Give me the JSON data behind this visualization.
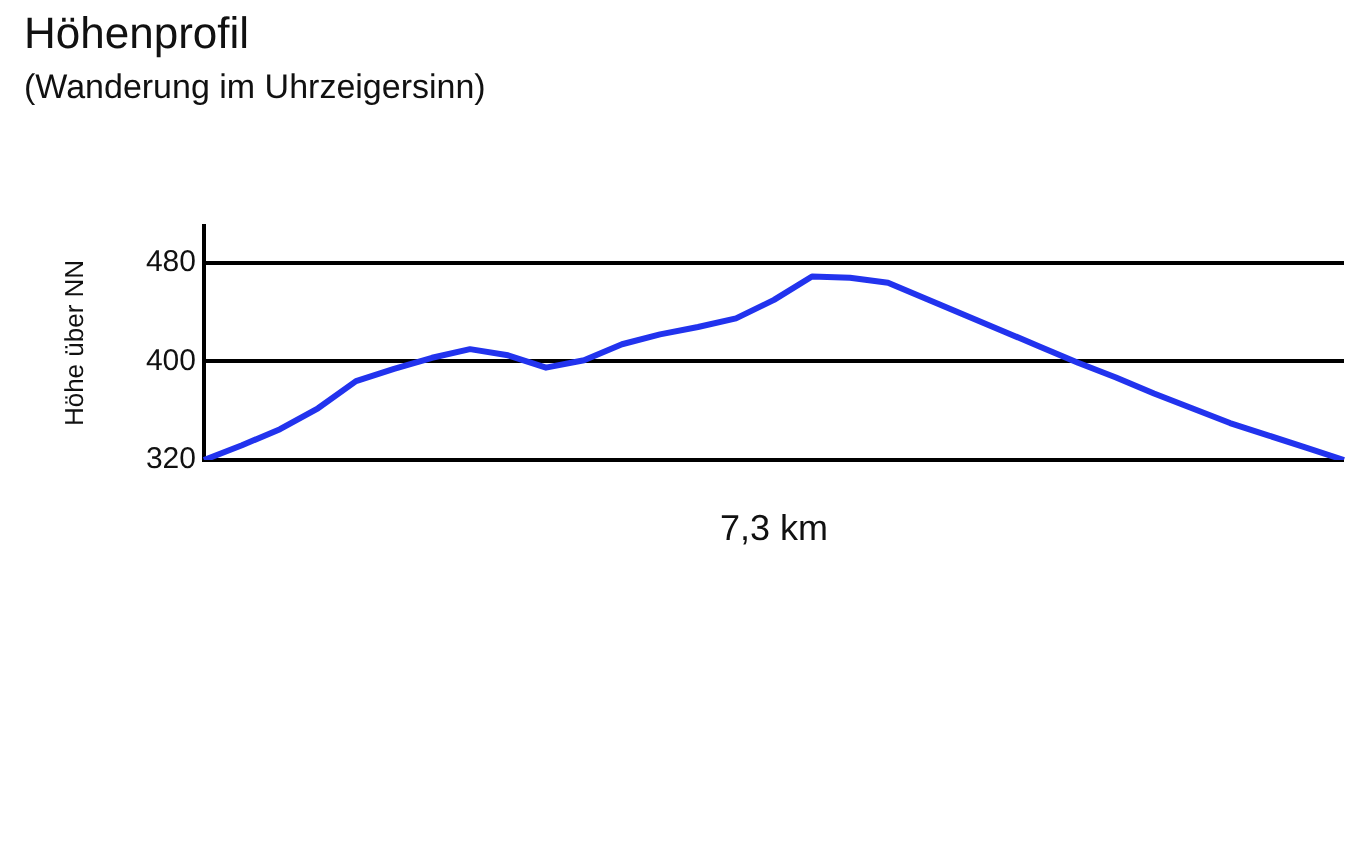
{
  "chart_data": {
    "type": "line",
    "title": "Höhenprofil",
    "subtitle": "(Wanderung im Uhrzeigersinn)",
    "xlabel": "7,3 km",
    "ylabel": "Höhe über NN",
    "categories": [
      null,
      null,
      null,
      null,
      null,
      null,
      null,
      null,
      null,
      null,
      null,
      null,
      null,
      null,
      null,
      null,
      null,
      null,
      null,
      null,
      null,
      null,
      null,
      null,
      null,
      null,
      null,
      null,
      null,
      null,
      null
    ],
    "series": [
      {
        "color": "#2233ee",
        "values": [
          320,
          332,
          345,
          362,
          384,
          394,
          403,
          410,
          405,
          395,
          401,
          414,
          422,
          428,
          435,
          450,
          469,
          468,
          464,
          451,
          438,
          425,
          412,
          399,
          387,
          374,
          362,
          350,
          340,
          330,
          320
        ]
      }
    ],
    "ylim": [
      320,
      510
    ],
    "yticks": [
      320,
      400,
      480
    ],
    "grid": "y",
    "legend": false,
    "marker": "none",
    "line_style": "solid"
  }
}
